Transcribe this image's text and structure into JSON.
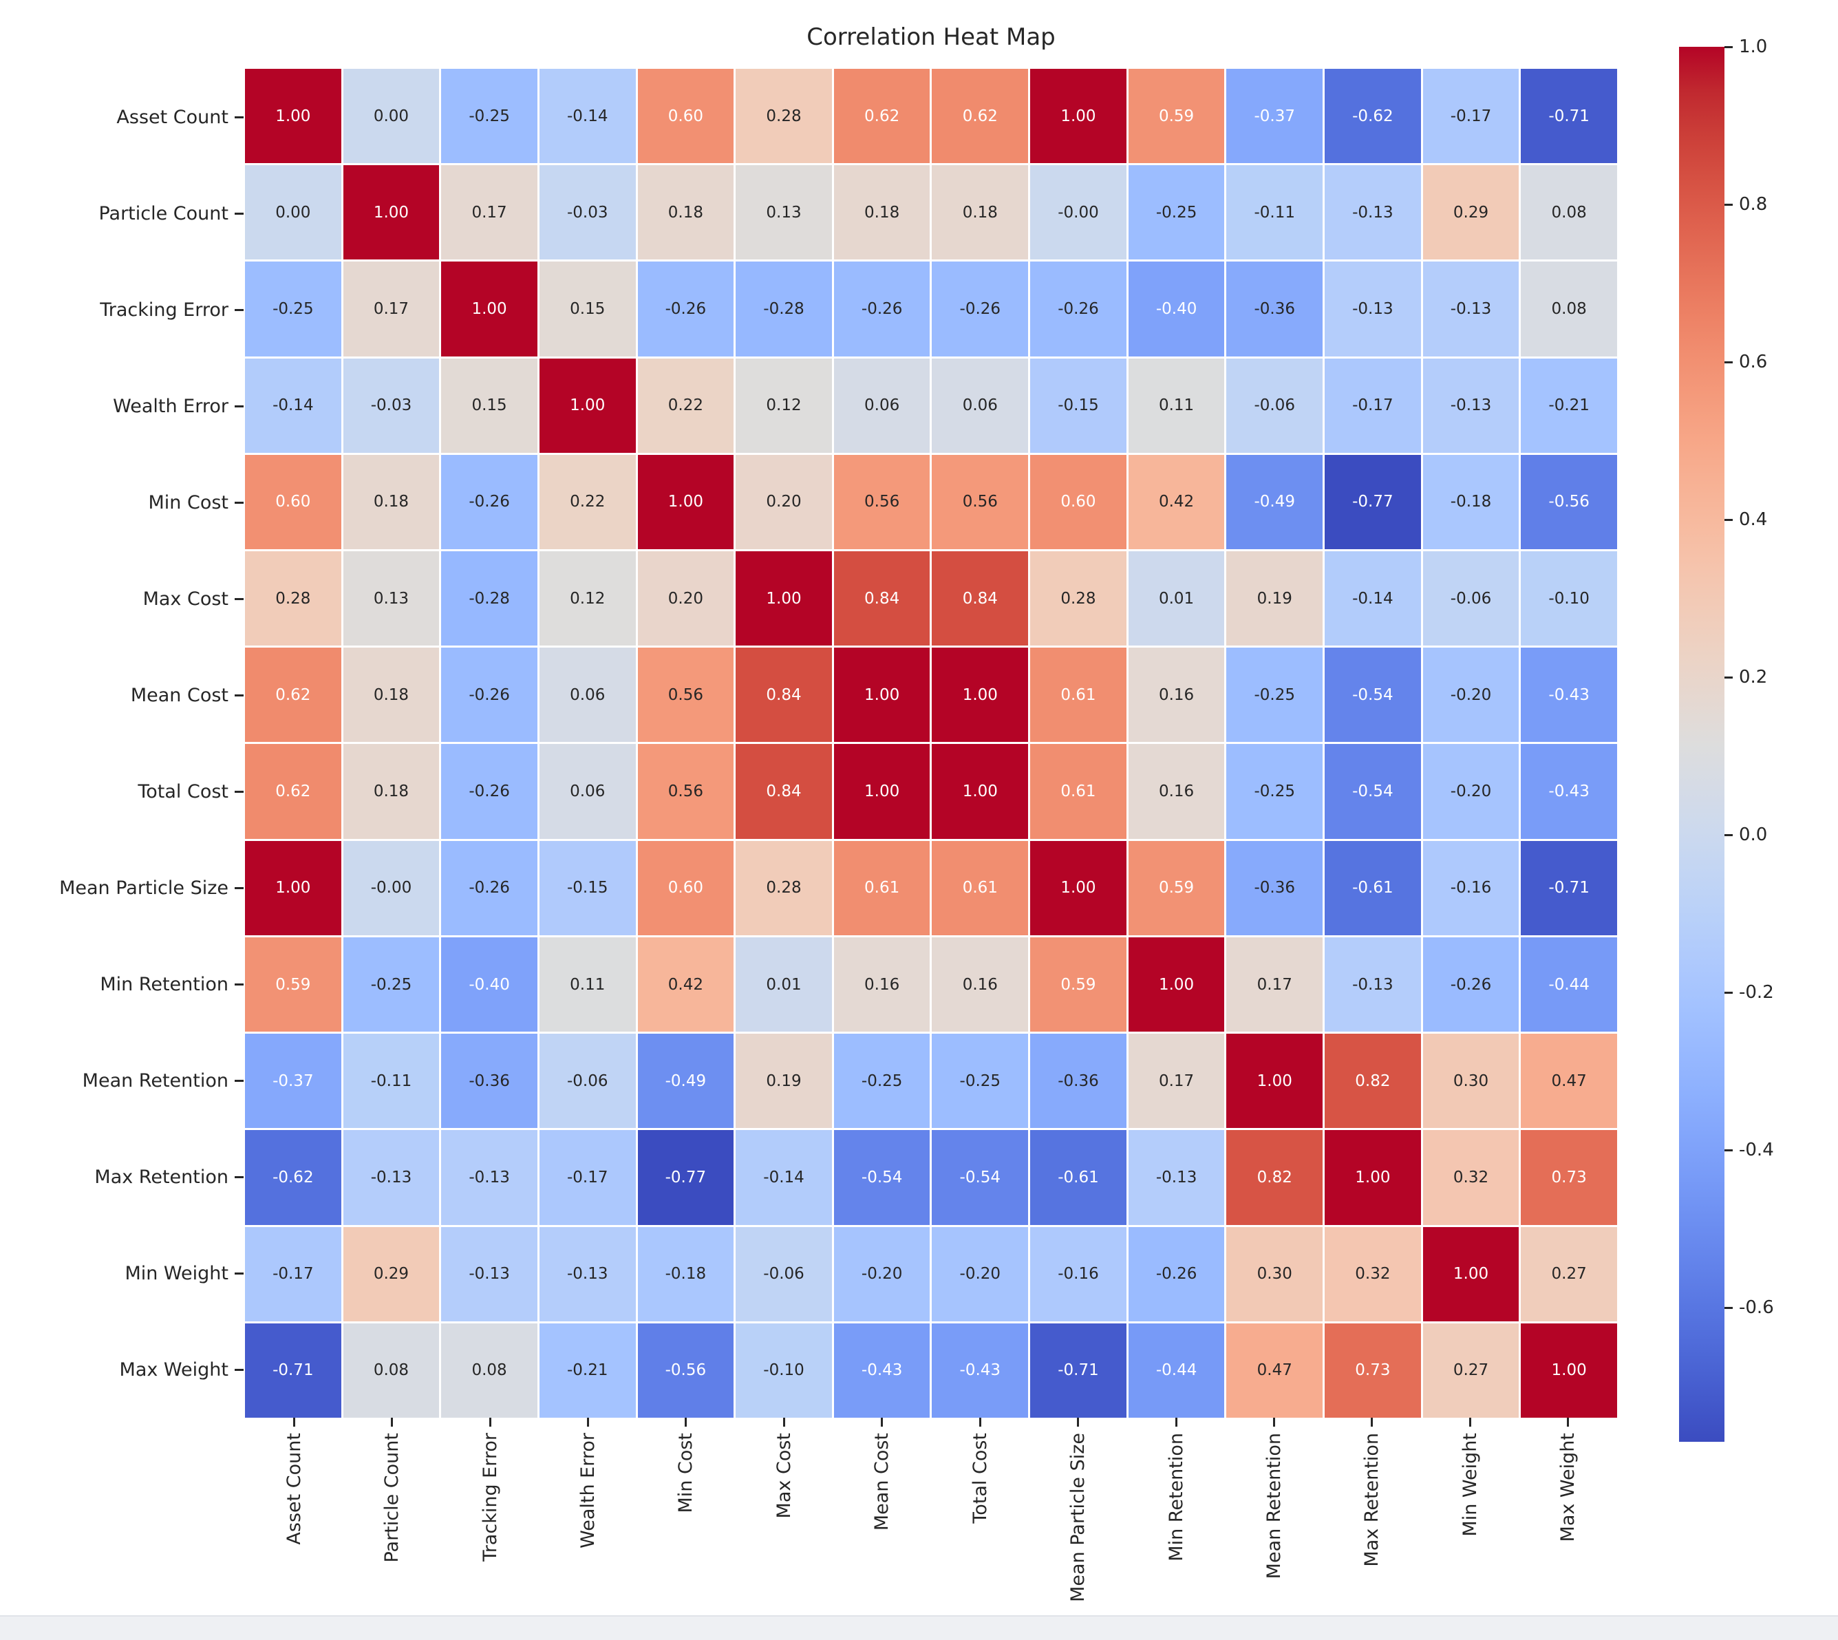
{
  "title": "Correlation Heat Map",
  "chart_data": {
    "type": "heatmap",
    "title": "Correlation Heat Map",
    "categories": [
      "Asset Count",
      "Particle Count",
      "Tracking Error",
      "Wealth Error",
      "Min Cost",
      "Max Cost",
      "Mean Cost",
      "Total Cost",
      "Mean Particle Size",
      "Min Retention",
      "Mean Retention",
      "Max Retention",
      "Min Weight",
      "Max Weight"
    ],
    "values": [
      [
        "1.00",
        "0.00",
        "-0.25",
        "-0.14",
        "0.60",
        "0.28",
        "0.62",
        "0.62",
        "1.00",
        "0.59",
        "-0.37",
        "-0.62",
        "-0.17",
        "-0.71"
      ],
      [
        "0.00",
        "1.00",
        "0.17",
        "-0.03",
        "0.18",
        "0.13",
        "0.18",
        "0.18",
        "-0.00",
        "-0.25",
        "-0.11",
        "-0.13",
        "0.29",
        "0.08"
      ],
      [
        "-0.25",
        "0.17",
        "1.00",
        "0.15",
        "-0.26",
        "-0.28",
        "-0.26",
        "-0.26",
        "-0.26",
        "-0.40",
        "-0.36",
        "-0.13",
        "-0.13",
        "0.08"
      ],
      [
        "-0.14",
        "-0.03",
        "0.15",
        "1.00",
        "0.22",
        "0.12",
        "0.06",
        "0.06",
        "-0.15",
        "0.11",
        "-0.06",
        "-0.17",
        "-0.13",
        "-0.21"
      ],
      [
        "0.60",
        "0.18",
        "-0.26",
        "0.22",
        "1.00",
        "0.20",
        "0.56",
        "0.56",
        "0.60",
        "0.42",
        "-0.49",
        "-0.77",
        "-0.18",
        "-0.56"
      ],
      [
        "0.28",
        "0.13",
        "-0.28",
        "0.12",
        "0.20",
        "1.00",
        "0.84",
        "0.84",
        "0.28",
        "0.01",
        "0.19",
        "-0.14",
        "-0.06",
        "-0.10"
      ],
      [
        "0.62",
        "0.18",
        "-0.26",
        "0.06",
        "0.56",
        "0.84",
        "1.00",
        "1.00",
        "0.61",
        "0.16",
        "-0.25",
        "-0.54",
        "-0.20",
        "-0.43"
      ],
      [
        "0.62",
        "0.18",
        "-0.26",
        "0.06",
        "0.56",
        "0.84",
        "1.00",
        "1.00",
        "0.61",
        "0.16",
        "-0.25",
        "-0.54",
        "-0.20",
        "-0.43"
      ],
      [
        "1.00",
        "-0.00",
        "-0.26",
        "-0.15",
        "0.60",
        "0.28",
        "0.61",
        "0.61",
        "1.00",
        "0.59",
        "-0.36",
        "-0.61",
        "-0.16",
        "-0.71"
      ],
      [
        "0.59",
        "-0.25",
        "-0.40",
        "0.11",
        "0.42",
        "0.01",
        "0.16",
        "0.16",
        "0.59",
        "1.00",
        "0.17",
        "-0.13",
        "-0.26",
        "-0.44"
      ],
      [
        "-0.37",
        "-0.11",
        "-0.36",
        "-0.06",
        "-0.49",
        "0.19",
        "-0.25",
        "-0.25",
        "-0.36",
        "0.17",
        "1.00",
        "0.82",
        "0.30",
        "0.47"
      ],
      [
        "-0.62",
        "-0.13",
        "-0.13",
        "-0.17",
        "-0.77",
        "-0.14",
        "-0.54",
        "-0.54",
        "-0.61",
        "-0.13",
        "0.82",
        "1.00",
        "0.32",
        "0.73"
      ],
      [
        "-0.17",
        "0.29",
        "-0.13",
        "-0.13",
        "-0.18",
        "-0.06",
        "-0.20",
        "-0.20",
        "-0.16",
        "-0.26",
        "0.30",
        "0.32",
        "1.00",
        "0.27"
      ],
      [
        "-0.71",
        "0.08",
        "0.08",
        "-0.21",
        "-0.56",
        "-0.10",
        "-0.43",
        "-0.43",
        "-0.71",
        "-0.44",
        "0.47",
        "0.73",
        "0.27",
        "1.00"
      ]
    ],
    "colormap": "coolwarm",
    "vmin": -0.77,
    "vmax": 1.0,
    "colorbar_ticks": [
      "1.0",
      "0.8",
      "0.6",
      "0.4",
      "0.2",
      "0.0",
      "-0.2",
      "-0.4",
      "-0.6"
    ],
    "annotation_text_rule": {
      "white_if_value_at_least": 0.59,
      "white_if_value_at_most": -0.37
    },
    "colors": {
      "cmap_low": "#3B4CC0",
      "cmap_mid": "#DDDDDD",
      "cmap_high": "#B40426",
      "text_dark": "#262626",
      "text_light": "#ffffff",
      "background": "#ffffff",
      "footer_strip": "#eef0f3",
      "footer_border": "#e0e3e8"
    }
  }
}
